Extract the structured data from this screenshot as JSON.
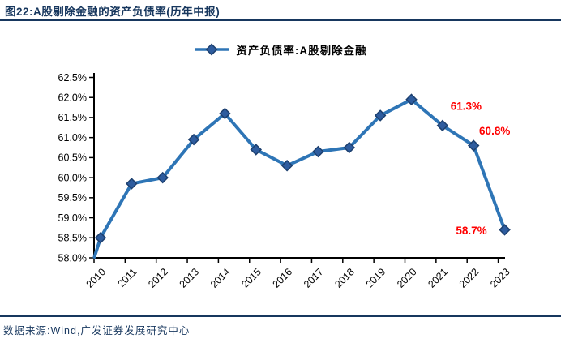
{
  "header": {
    "title": "图22:A股剔除金融的资产负债率(历年中报)"
  },
  "legend": {
    "label": "资产负债率:A股剔除金融"
  },
  "footer": {
    "source": "数据来源:Wind,广发证券发展研究中心"
  },
  "colors": {
    "accent_navy": "#17375E",
    "line_blue": "#2E75B6",
    "marker_fill": "#2E5C9E",
    "marker_stroke": "#1C3F6E",
    "annotation_red": "#FF0000",
    "axis_black": "#000000"
  },
  "chart_data": {
    "type": "line",
    "title": "资产负债率:A股剔除金融",
    "categories": [
      "2010",
      "2011",
      "2012",
      "2013",
      "2014",
      "2015",
      "2016",
      "2017",
      "2018",
      "2019",
      "2020",
      "2021",
      "2022",
      "2023"
    ],
    "values": [
      58.5,
      59.85,
      60.0,
      60.95,
      61.6,
      60.7,
      60.3,
      60.65,
      60.75,
      61.55,
      61.95,
      61.3,
      60.8,
      58.7
    ],
    "unit": "%",
    "ylim": [
      58.0,
      62.5
    ],
    "ytick_step": 0.5,
    "ytick_labels": [
      "58.0%",
      "58.5%",
      "59.0%",
      "59.5%",
      "60.0%",
      "60.5%",
      "61.0%",
      "61.5%",
      "62.0%",
      "62.5%"
    ],
    "grid": false,
    "legend_position": "top",
    "marker": "diamond",
    "annotations": [
      {
        "category": "2021",
        "text": "61.3%"
      },
      {
        "category": "2022",
        "text": "60.8%"
      },
      {
        "category": "2023",
        "text": "58.7%"
      }
    ]
  }
}
